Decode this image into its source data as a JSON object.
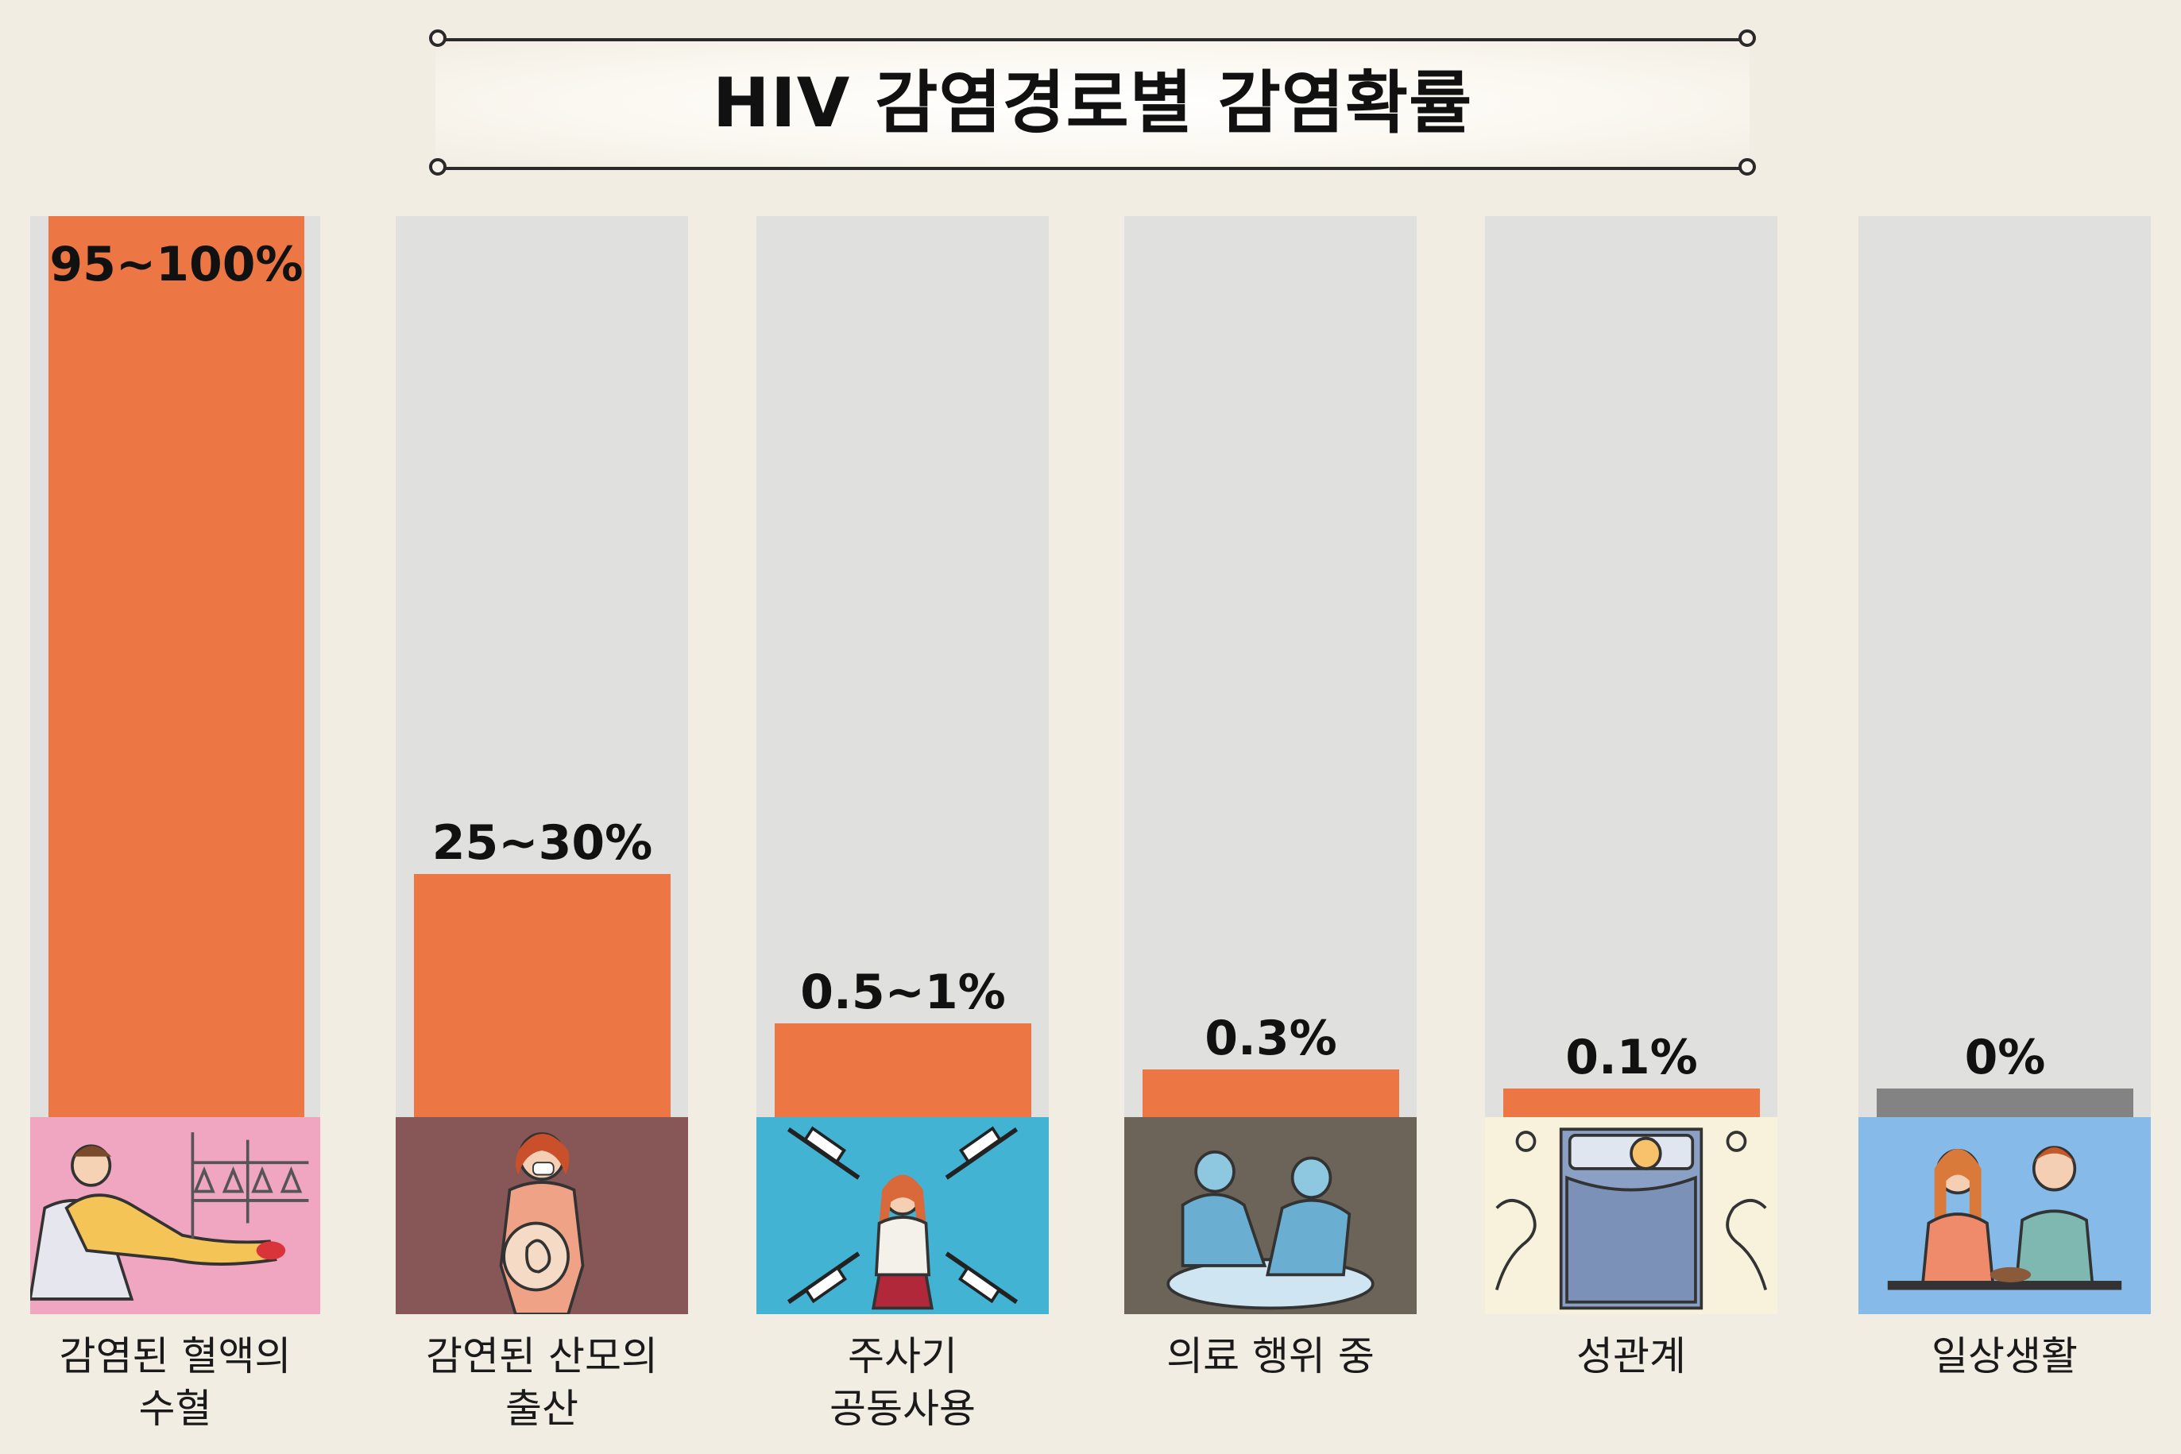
{
  "chart_data": {
    "type": "bar",
    "title": "HIV 감염경로별 감염확률",
    "categories": [
      "감염된 혈액의\n수혈",
      "감연된 산모의\n출산",
      "주사기\n공동사용",
      "의료 행위 중",
      "성관계",
      "일상생활"
    ],
    "value_labels": [
      "95~100%",
      "25~30%",
      "0.5~1%",
      "0.3%",
      "0.1%",
      "0%"
    ],
    "values": [
      97.5,
      27.5,
      0.75,
      0.3,
      0.1,
      0
    ],
    "bar_colors": [
      "#ec7744",
      "#ec7744",
      "#ec7744",
      "#ec7744",
      "#ec7744",
      "#838383"
    ],
    "illustration_colors": [
      "#f0a5c0",
      "#875757",
      "#42b3d2",
      "#6d6459",
      "#f8f2dc",
      "#86bae8"
    ],
    "illustration_icons": [
      "blood-transfusion-icon",
      "pregnant-mother-icon",
      "syringes-icon",
      "surgeons-icon",
      "bed-couple-icon",
      "couple-eating-icon"
    ],
    "track_color": "#e0e0de",
    "background_color": "#f2ede3"
  }
}
